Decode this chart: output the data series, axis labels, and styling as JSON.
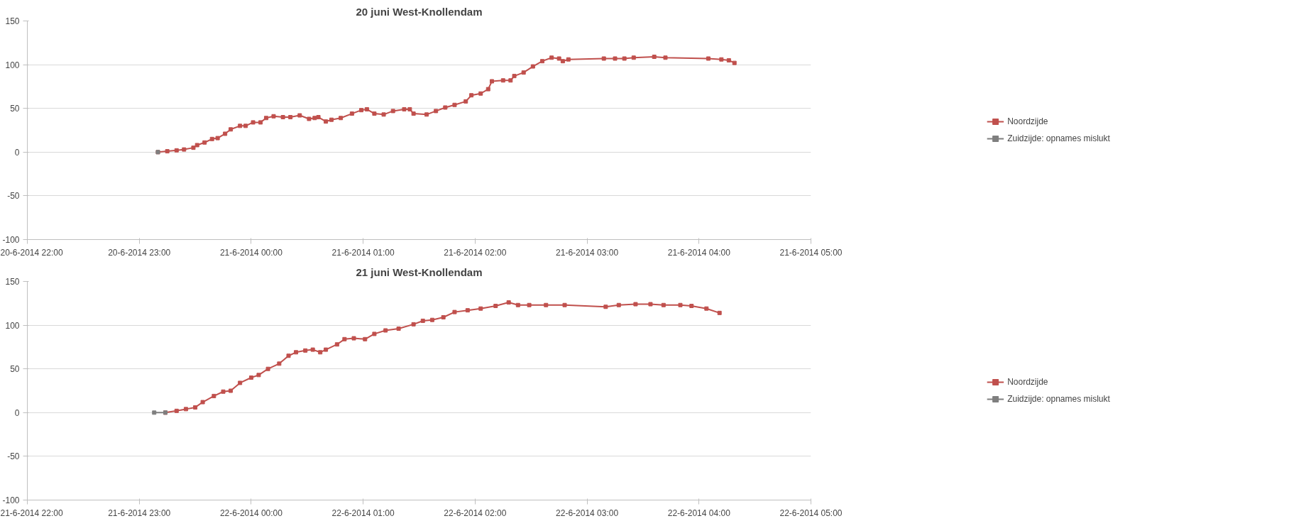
{
  "chart_data": [
    {
      "type": "line",
      "title": "20 juni West-Knollendam",
      "marker": "square",
      "grid": "y",
      "legend": "right",
      "xlim": [
        "2014-06-20T22:00",
        "2014-06-21T05:00"
      ],
      "xticks": [
        {
          "value": "2014-06-20T22:00",
          "label": "20-6-2014 22:00"
        },
        {
          "value": "2014-06-20T23:00",
          "label": "20-6-2014 23:00"
        },
        {
          "value": "2014-06-21T00:00",
          "label": "21-6-2014 00:00"
        },
        {
          "value": "2014-06-21T01:00",
          "label": "21-6-2014 01:00"
        },
        {
          "value": "2014-06-21T02:00",
          "label": "21-6-2014 02:00"
        },
        {
          "value": "2014-06-21T03:00",
          "label": "21-6-2014 03:00"
        },
        {
          "value": "2014-06-21T04:00",
          "label": "21-6-2014 04:00"
        },
        {
          "value": "2014-06-21T05:00",
          "label": "21-6-2014 05:00"
        }
      ],
      "ylim": [
        -100,
        150
      ],
      "yticks": [
        -100,
        -50,
        0,
        50,
        100,
        150
      ],
      "series": [
        {
          "name": "Noordzijde",
          "color": "#c0504d",
          "x": [
            "2014-06-20T23:10",
            "2014-06-20T23:15",
            "2014-06-20T23:20",
            "2014-06-20T23:24",
            "2014-06-20T23:29",
            "2014-06-20T23:31",
            "2014-06-20T23:35",
            "2014-06-20T23:39",
            "2014-06-20T23:42",
            "2014-06-20T23:46",
            "2014-06-20T23:49",
            "2014-06-20T23:54",
            "2014-06-20T23:57",
            "2014-06-21T00:01",
            "2014-06-21T00:05",
            "2014-06-21T00:08",
            "2014-06-21T00:12",
            "2014-06-21T00:17",
            "2014-06-21T00:21",
            "2014-06-21T00:26",
            "2014-06-21T00:31",
            "2014-06-21T00:34",
            "2014-06-21T00:36",
            "2014-06-21T00:40",
            "2014-06-21T00:43",
            "2014-06-21T00:48",
            "2014-06-21T00:54",
            "2014-06-21T00:59",
            "2014-06-21T01:02",
            "2014-06-21T01:06",
            "2014-06-21T01:11",
            "2014-06-21T01:16",
            "2014-06-21T01:22",
            "2014-06-21T01:25",
            "2014-06-21T01:27",
            "2014-06-21T01:34",
            "2014-06-21T01:39",
            "2014-06-21T01:44",
            "2014-06-21T01:49",
            "2014-06-21T01:55",
            "2014-06-21T01:58",
            "2014-06-21T02:03",
            "2014-06-21T02:07",
            "2014-06-21T02:09",
            "2014-06-21T02:15",
            "2014-06-21T02:19",
            "2014-06-21T02:21",
            "2014-06-21T02:26",
            "2014-06-21T02:31",
            "2014-06-21T02:36",
            "2014-06-21T02:41",
            "2014-06-21T02:45",
            "2014-06-21T02:47",
            "2014-06-21T02:50",
            "2014-06-21T03:09",
            "2014-06-21T03:15",
            "2014-06-21T03:20",
            "2014-06-21T03:25",
            "2014-06-21T03:36",
            "2014-06-21T03:42",
            "2014-06-21T04:05",
            "2014-06-21T04:12",
            "2014-06-21T04:16",
            "2014-06-21T04:19"
          ],
          "values": [
            0,
            1,
            2,
            3,
            5,
            8,
            11,
            15,
            16,
            21,
            26,
            30,
            30,
            34,
            34,
            39,
            41,
            40,
            40,
            42,
            38,
            39,
            40,
            35,
            37,
            39,
            44,
            48,
            49,
            44,
            43,
            47,
            49,
            49,
            44,
            43,
            47,
            51,
            54,
            58,
            65,
            67,
            72,
            81,
            82,
            82,
            87,
            91,
            98,
            104,
            108,
            107,
            104,
            106,
            107,
            107,
            107,
            108,
            109,
            108,
            107,
            106,
            105,
            102
          ]
        },
        {
          "name": "Zuidzijde: opnames mislukt",
          "color": "#7f7f7f",
          "x": [
            "2014-06-20T23:10"
          ],
          "values": [
            0
          ]
        }
      ]
    },
    {
      "type": "line",
      "title": "21 juni West-Knollendam",
      "marker": "square",
      "grid": "y",
      "legend": "right",
      "xlim": [
        "2014-06-21T22:00",
        "2014-06-22T05:00"
      ],
      "xticks": [
        {
          "value": "2014-06-21T22:00",
          "label": "21-6-2014 22:00"
        },
        {
          "value": "2014-06-21T23:00",
          "label": "21-6-2014 23:00"
        },
        {
          "value": "2014-06-22T00:00",
          "label": "22-6-2014 00:00"
        },
        {
          "value": "2014-06-22T01:00",
          "label": "22-6-2014 01:00"
        },
        {
          "value": "2014-06-22T02:00",
          "label": "22-6-2014 02:00"
        },
        {
          "value": "2014-06-22T03:00",
          "label": "22-6-2014 03:00"
        },
        {
          "value": "2014-06-22T04:00",
          "label": "22-6-2014 04:00"
        },
        {
          "value": "2014-06-22T05:00",
          "label": "22-6-2014 05:00"
        }
      ],
      "ylim": [
        -100,
        150
      ],
      "yticks": [
        -100,
        -50,
        0,
        50,
        100,
        150
      ],
      "series": [
        {
          "name": "Noordzijde",
          "color": "#c0504d",
          "x": [
            "2014-06-21T23:14",
            "2014-06-21T23:20",
            "2014-06-21T23:25",
            "2014-06-21T23:30",
            "2014-06-21T23:34",
            "2014-06-21T23:40",
            "2014-06-21T23:45",
            "2014-06-21T23:49",
            "2014-06-21T23:54",
            "2014-06-22T00:00",
            "2014-06-22T00:04",
            "2014-06-22T00:09",
            "2014-06-22T00:15",
            "2014-06-22T00:20",
            "2014-06-22T00:24",
            "2014-06-22T00:29",
            "2014-06-22T00:33",
            "2014-06-22T00:37",
            "2014-06-22T00:40",
            "2014-06-22T00:46",
            "2014-06-22T00:50",
            "2014-06-22T00:55",
            "2014-06-22T01:01",
            "2014-06-22T01:06",
            "2014-06-22T01:12",
            "2014-06-22T01:19",
            "2014-06-22T01:27",
            "2014-06-22T01:32",
            "2014-06-22T01:37",
            "2014-06-22T01:43",
            "2014-06-22T01:49",
            "2014-06-22T01:56",
            "2014-06-22T02:03",
            "2014-06-22T02:11",
            "2014-06-22T02:18",
            "2014-06-22T02:23",
            "2014-06-22T02:29",
            "2014-06-22T02:38",
            "2014-06-22T02:48",
            "2014-06-22T03:10",
            "2014-06-22T03:17",
            "2014-06-22T03:26",
            "2014-06-22T03:34",
            "2014-06-22T03:41",
            "2014-06-22T03:50",
            "2014-06-22T03:56",
            "2014-06-22T04:04",
            "2014-06-22T04:11"
          ],
          "values": [
            0,
            2,
            4,
            6,
            12,
            19,
            24,
            25,
            34,
            40,
            43,
            50,
            56,
            65,
            69,
            71,
            72,
            69,
            72,
            78,
            84,
            85,
            84,
            90,
            94,
            96,
            101,
            105,
            106,
            109,
            115,
            117,
            119,
            122,
            126,
            123,
            123,
            123,
            123,
            121,
            123,
            124,
            124,
            123,
            123,
            122,
            119,
            114
          ]
        },
        {
          "name": "Zuidzijde: opnames mislukt",
          "color": "#7f7f7f",
          "x": [
            "2014-06-21T23:08",
            "2014-06-21T23:14"
          ],
          "values": [
            0,
            0
          ]
        }
      ]
    }
  ]
}
